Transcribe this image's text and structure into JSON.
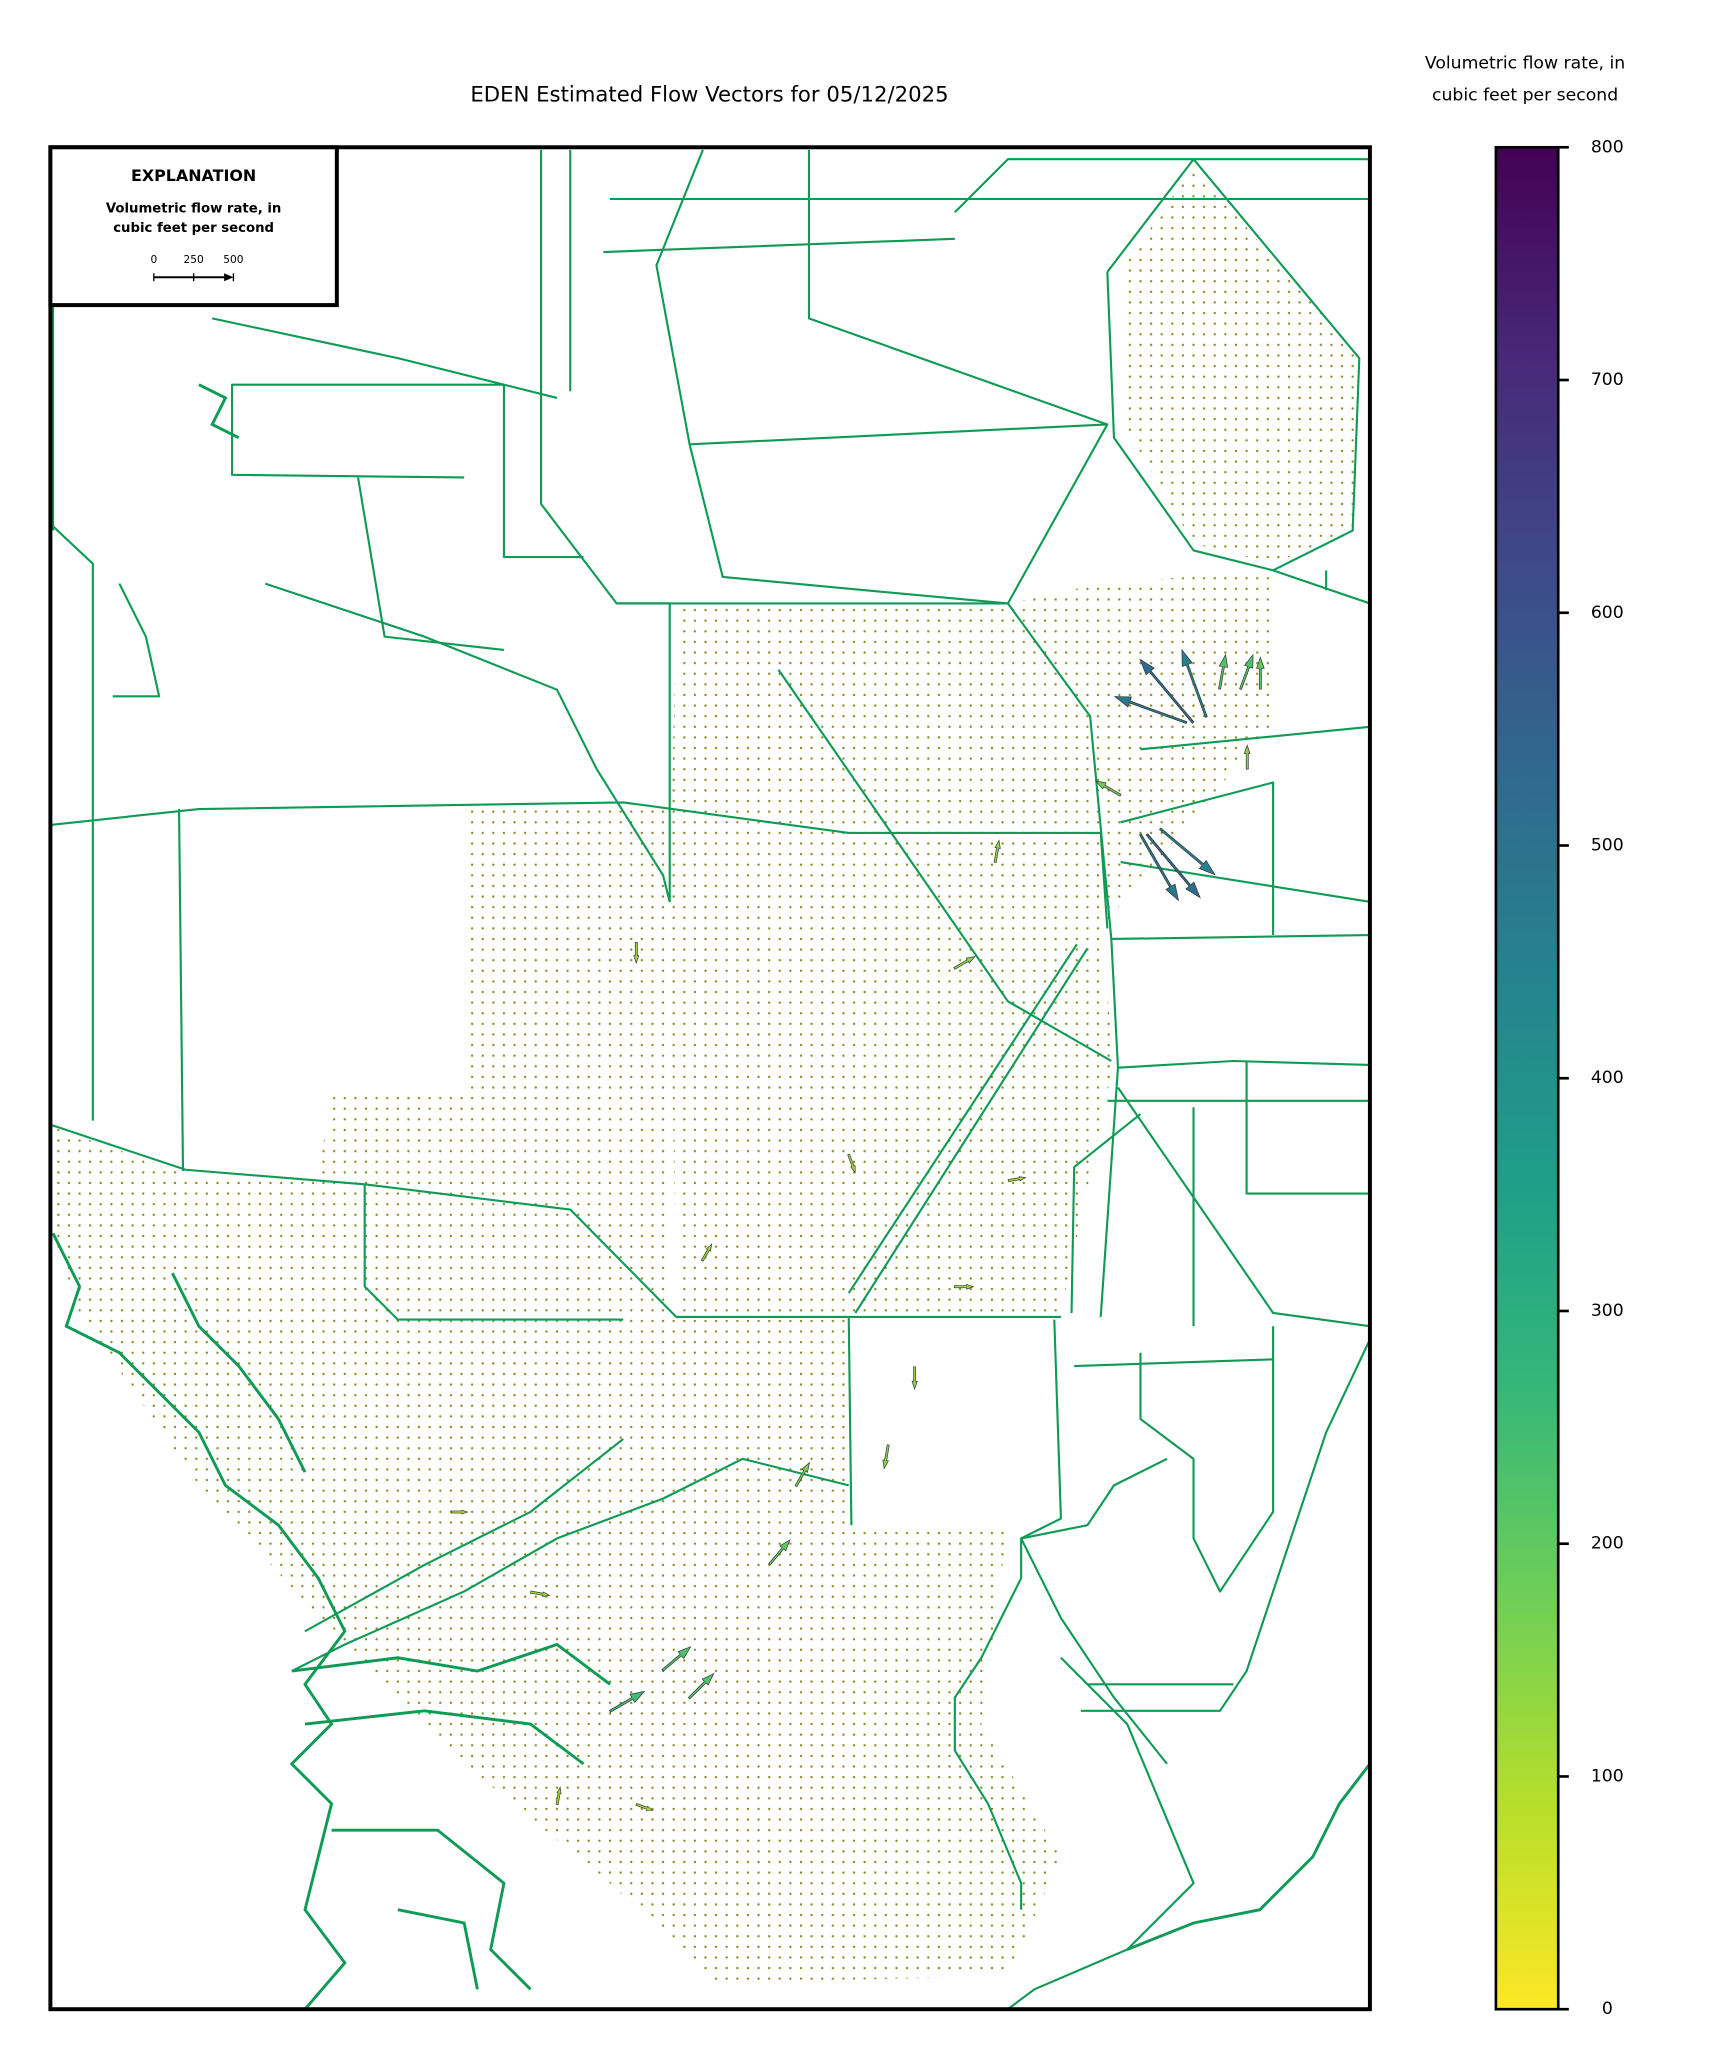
{
  "title": "EDEN Estimated Flow Vectors for 05/12/2025",
  "colorbar": {
    "label_lines": [
      "Volumetric flow rate, in",
      "cubic feet per second"
    ],
    "lim": [
      0,
      800
    ],
    "ticks": [
      0,
      100,
      200,
      300,
      400,
      500,
      600,
      700,
      800
    ],
    "colormap": [
      "#fde725",
      "#b5de2b",
      "#6ece58",
      "#35b779",
      "#1f9e89",
      "#26828e",
      "#31688e",
      "#3e4989",
      "#482878",
      "#440154"
    ]
  },
  "explanation": {
    "title": "EXPLANATION",
    "label_lines": [
      "Volumetric flow rate, in",
      "cubic feet per second"
    ],
    "scale_ticks": [
      0,
      250,
      500
    ]
  },
  "vectors": [
    {
      "x": 86.6,
      "y": 30.9,
      "magnitude": 520,
      "direction_deg": 130
    },
    {
      "x": 86.1,
      "y": 30.9,
      "magnitude": 480,
      "direction_deg": 160
    },
    {
      "x": 87.6,
      "y": 30.6,
      "magnitude": 450,
      "direction_deg": 110
    },
    {
      "x": 83.1,
      "y": 36.9,
      "magnitude": 520,
      "direction_deg": -50
    },
    {
      "x": 82.6,
      "y": 36.9,
      "magnitude": 480,
      "direction_deg": -60
    },
    {
      "x": 84.1,
      "y": 36.6,
      "magnitude": 450,
      "direction_deg": -40
    },
    {
      "x": 88.6,
      "y": 29.1,
      "magnitude": 220,
      "direction_deg": 80
    },
    {
      "x": 90.2,
      "y": 29.1,
      "magnitude": 230,
      "direction_deg": 70
    },
    {
      "x": 91.7,
      "y": 29.1,
      "magnitude": 200,
      "direction_deg": 90
    },
    {
      "x": 90.7,
      "y": 33.4,
      "magnitude": 150,
      "direction_deg": 90
    },
    {
      "x": 81.1,
      "y": 34.8,
      "magnitude": 180,
      "direction_deg": 150
    },
    {
      "x": 44.4,
      "y": 42.7,
      "magnitude": 130,
      "direction_deg": -90
    },
    {
      "x": 68.5,
      "y": 44.1,
      "magnitude": 150,
      "direction_deg": 30
    },
    {
      "x": 71.6,
      "y": 38.4,
      "magnitude": 140,
      "direction_deg": 80
    },
    {
      "x": 49.4,
      "y": 59.8,
      "magnitude": 120,
      "direction_deg": 60
    },
    {
      "x": 65.5,
      "y": 65.5,
      "magnitude": 140,
      "direction_deg": -90
    },
    {
      "x": 63.5,
      "y": 69.7,
      "magnitude": 150,
      "direction_deg": -100
    },
    {
      "x": 56.5,
      "y": 71.9,
      "magnitude": 170,
      "direction_deg": 60
    },
    {
      "x": 54.5,
      "y": 76.1,
      "magnitude": 200,
      "direction_deg": 50
    },
    {
      "x": 46.4,
      "y": 81.8,
      "magnitude": 230,
      "direction_deg": 40
    },
    {
      "x": 42.4,
      "y": 84.0,
      "magnitude": 250,
      "direction_deg": 30
    },
    {
      "x": 48.4,
      "y": 83.3,
      "magnitude": 220,
      "direction_deg": 45
    },
    {
      "x": 36.4,
      "y": 77.6,
      "magnitude": 120,
      "direction_deg": -10
    },
    {
      "x": 30.4,
      "y": 73.3,
      "magnitude": 100,
      "direction_deg": 0
    },
    {
      "x": 44.4,
      "y": 89.0,
      "magnitude": 110,
      "direction_deg": -20
    },
    {
      "x": 38.4,
      "y": 89.0,
      "magnitude": 110,
      "direction_deg": 80
    },
    {
      "x": 68.5,
      "y": 61.2,
      "magnitude": 120,
      "direction_deg": 0
    },
    {
      "x": 72.6,
      "y": 55.5,
      "magnitude": 110,
      "direction_deg": 10
    },
    {
      "x": 60.5,
      "y": 54.1,
      "magnitude": 120,
      "direction_deg": -70
    }
  ]
}
